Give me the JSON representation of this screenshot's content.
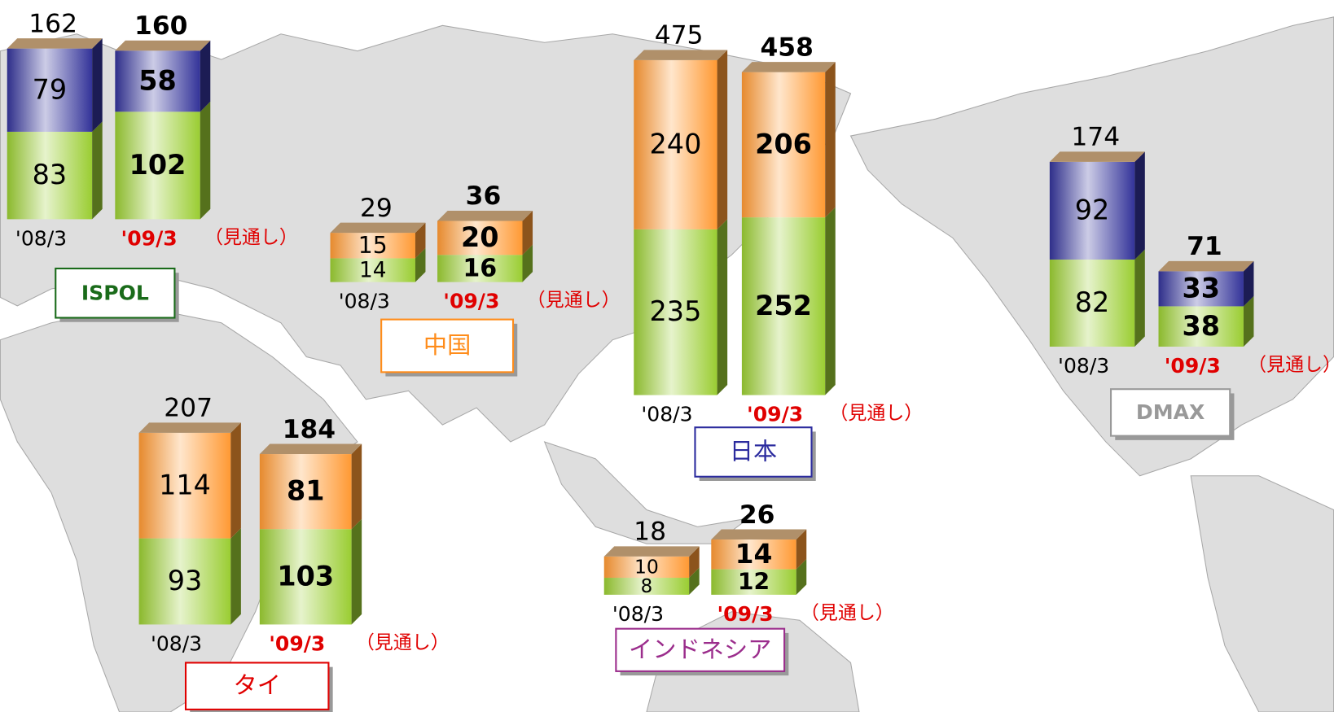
{
  "chart_data": [
    {
      "type": "bar",
      "stacked": true,
      "title": "ISPOL",
      "categories": [
        "'08/3",
        "'09/3"
      ],
      "annotation": "（見通し）",
      "series": [
        {
          "color": "#9acd32",
          "values": [
            83,
            102
          ]
        },
        {
          "color": "#333399",
          "values": [
            79,
            58
          ]
        }
      ],
      "totals": [
        162,
        160
      ]
    },
    {
      "type": "bar",
      "stacked": true,
      "title": "中国",
      "categories": [
        "'08/3",
        "'09/3"
      ],
      "annotation": "（見通し）",
      "series": [
        {
          "color": "#9acd32",
          "values": [
            14,
            16
          ]
        },
        {
          "color": "#ff9933",
          "values": [
            15,
            20
          ]
        }
      ],
      "totals": [
        29,
        36
      ]
    },
    {
      "type": "bar",
      "stacked": true,
      "title": "日本",
      "categories": [
        "'08/3",
        "'09/3"
      ],
      "annotation": "（見通し）",
      "series": [
        {
          "color": "#9acd32",
          "values": [
            235,
            252
          ]
        },
        {
          "color": "#ff9933",
          "values": [
            240,
            206
          ]
        }
      ],
      "totals": [
        475,
        458
      ]
    },
    {
      "type": "bar",
      "stacked": true,
      "title": "タイ",
      "categories": [
        "'08/3",
        "'09/3"
      ],
      "annotation": "（見通し）",
      "series": [
        {
          "color": "#9acd32",
          "values": [
            93,
            103
          ]
        },
        {
          "color": "#ff9933",
          "values": [
            114,
            81
          ]
        }
      ],
      "totals": [
        207,
        184
      ]
    },
    {
      "type": "bar",
      "stacked": true,
      "title": "インドネシア",
      "categories": [
        "'08/3",
        "'09/3"
      ],
      "annotation": "（見通し）",
      "series": [
        {
          "color": "#9acd32",
          "values": [
            8,
            12
          ]
        },
        {
          "color": "#ff9933",
          "values": [
            10,
            14
          ]
        }
      ],
      "totals": [
        18,
        26
      ]
    },
    {
      "type": "bar",
      "stacked": true,
      "title": "DMAX",
      "categories": [
        "'08/3",
        "'09/3"
      ],
      "annotation": "（見通し）",
      "series": [
        {
          "color": "#9acd32",
          "values": [
            82,
            38
          ]
        },
        {
          "color": "#333399",
          "values": [
            92,
            33
          ]
        }
      ],
      "totals": [
        174,
        71
      ]
    }
  ]
}
